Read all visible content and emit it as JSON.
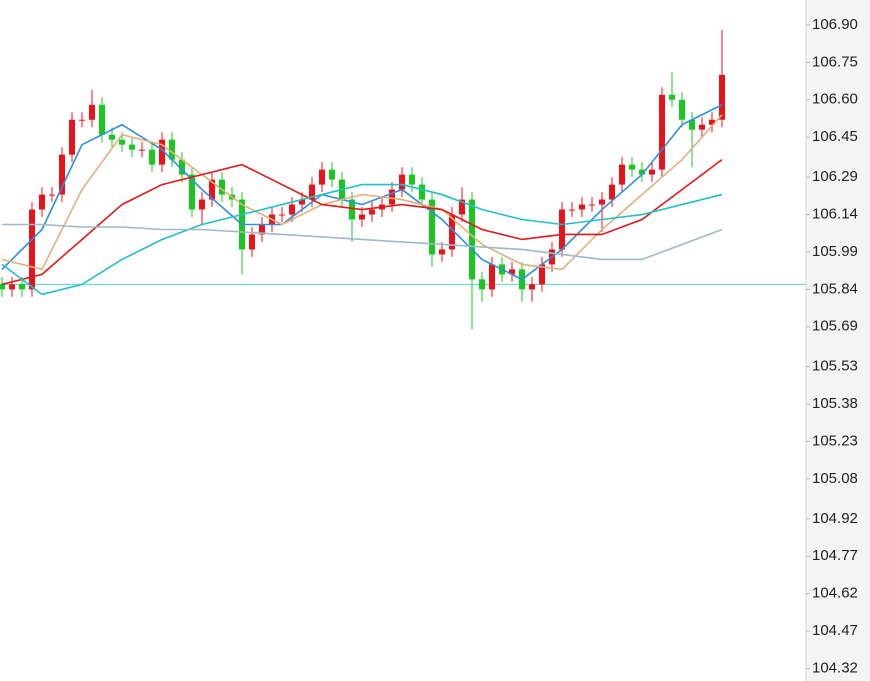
{
  "chart_data": {
    "type": "candlestick",
    "open": [
      105.86,
      105.84,
      105.86,
      105.84,
      106.16,
      106.22,
      106.22,
      106.38,
      106.52,
      106.52,
      106.58,
      106.46,
      106.44,
      106.42,
      106.4,
      106.4,
      106.34,
      106.44,
      106.36,
      106.3,
      106.16,
      106.2,
      106.28,
      106.22,
      106.2,
      106.0,
      106.06,
      106.1,
      106.14,
      106.14,
      106.18,
      106.2,
      106.26,
      106.32,
      106.28,
      106.2,
      106.12,
      106.14,
      106.16,
      106.18,
      106.24,
      106.3,
      106.26,
      106.2,
      105.98,
      106.0,
      106.14,
      106.2,
      105.88,
      105.84,
      105.94,
      105.9,
      105.92,
      105.84,
      105.86,
      105.94,
      106.0,
      106.16,
      106.16,
      106.18,
      106.18,
      106.2,
      106.26,
      106.34,
      106.32,
      106.3,
      106.32,
      106.62,
      106.6,
      106.52,
      106.48,
      106.5,
      106.52
    ],
    "high": [
      105.89,
      105.89,
      105.89,
      106.19,
      106.25,
      106.25,
      106.41,
      106.55,
      106.55,
      106.64,
      106.61,
      106.49,
      106.47,
      106.45,
      106.43,
      106.43,
      106.47,
      106.47,
      106.39,
      106.33,
      106.23,
      106.31,
      106.31,
      106.25,
      106.23,
      106.09,
      106.13,
      106.17,
      106.17,
      106.21,
      106.23,
      106.29,
      106.35,
      106.35,
      106.31,
      106.23,
      106.17,
      106.19,
      106.21,
      106.27,
      106.33,
      106.33,
      106.29,
      106.23,
      106.03,
      106.17,
      106.25,
      106.23,
      105.91,
      105.97,
      105.97,
      105.95,
      105.95,
      105.89,
      105.97,
      106.03,
      106.19,
      106.19,
      106.21,
      106.21,
      106.23,
      106.29,
      106.37,
      106.37,
      106.35,
      106.35,
      106.65,
      106.71,
      106.63,
      106.55,
      106.53,
      106.55,
      106.88
    ],
    "low": [
      105.81,
      105.81,
      105.81,
      105.81,
      106.13,
      106.19,
      106.19,
      106.35,
      106.49,
      106.49,
      106.43,
      106.41,
      106.39,
      106.37,
      106.37,
      106.31,
      106.31,
      106.33,
      106.27,
      106.13,
      106.1,
      106.17,
      106.19,
      106.17,
      105.9,
      105.97,
      106.03,
      106.07,
      106.11,
      106.11,
      106.15,
      106.17,
      106.23,
      106.25,
      106.17,
      106.03,
      106.09,
      106.11,
      106.13,
      106.15,
      106.21,
      106.23,
      106.17,
      105.93,
      105.95,
      105.97,
      106.11,
      105.68,
      105.79,
      105.81,
      105.87,
      105.87,
      105.79,
      105.79,
      105.83,
      105.91,
      105.97,
      106.13,
      106.13,
      106.15,
      106.07,
      106.17,
      106.23,
      106.29,
      106.27,
      106.27,
      106.29,
      106.57,
      106.49,
      106.33,
      106.45,
      106.47,
      106.49
    ],
    "close": [
      105.84,
      105.86,
      105.84,
      106.16,
      106.22,
      106.22,
      106.38,
      106.52,
      106.52,
      106.58,
      106.46,
      106.44,
      106.42,
      106.4,
      106.4,
      106.34,
      106.44,
      106.36,
      106.3,
      106.16,
      106.2,
      106.28,
      106.22,
      106.2,
      106.0,
      106.06,
      106.1,
      106.14,
      106.14,
      106.18,
      106.2,
      106.26,
      106.32,
      106.28,
      106.2,
      106.12,
      106.14,
      106.16,
      106.18,
      106.24,
      106.3,
      106.26,
      106.2,
      105.98,
      106.0,
      106.14,
      106.2,
      105.88,
      105.84,
      105.94,
      105.9,
      105.92,
      105.84,
      105.86,
      105.94,
      106.0,
      106.16,
      106.16,
      106.18,
      106.18,
      106.2,
      106.26,
      106.34,
      106.32,
      106.3,
      106.32,
      106.62,
      106.6,
      106.52,
      106.48,
      106.5,
      106.52,
      106.7
    ],
    "up_color": "#e8141c",
    "down_color": "#19c81e",
    "lines": [
      {
        "color": "#2e8fe0",
        "x": [
          0,
          4,
          8,
          12,
          16,
          20,
          24,
          28,
          32,
          36,
          40,
          44,
          48,
          52,
          56,
          60,
          64,
          68,
          72
        ],
        "values": [
          105.92,
          106.08,
          106.42,
          106.5,
          106.4,
          106.24,
          106.1,
          106.1,
          106.22,
          106.18,
          106.24,
          106.12,
          105.96,
          105.88,
          106.0,
          106.16,
          106.3,
          106.5,
          106.58
        ]
      },
      {
        "color": "#e0b080",
        "x": [
          0,
          4,
          8,
          12,
          16,
          20,
          24,
          28,
          32,
          36,
          40,
          44,
          48,
          52,
          56,
          60,
          64,
          68,
          72
        ],
        "values": [
          105.96,
          105.92,
          106.24,
          106.46,
          106.42,
          106.3,
          106.18,
          106.1,
          106.18,
          106.22,
          106.2,
          106.16,
          106.02,
          105.94,
          105.92,
          106.08,
          106.22,
          106.36,
          106.54
        ]
      },
      {
        "color": "#e01818",
        "x": [
          0,
          4,
          8,
          12,
          16,
          20,
          24,
          28,
          32,
          36,
          40,
          44,
          48,
          52,
          56,
          60,
          64,
          68,
          72
        ],
        "values": [
          105.86,
          105.9,
          106.04,
          106.18,
          106.26,
          106.3,
          106.34,
          106.26,
          106.18,
          106.16,
          106.18,
          106.16,
          106.08,
          106.04,
          106.06,
          106.06,
          106.12,
          106.24,
          106.36
        ]
      },
      {
        "color": "#22c0c8",
        "x": [
          0,
          4,
          8,
          12,
          16,
          20,
          24,
          28,
          32,
          36,
          40,
          44,
          48,
          52,
          56,
          60,
          64,
          68,
          72
        ],
        "values": [
          105.94,
          105.82,
          105.86,
          105.96,
          106.04,
          106.1,
          106.14,
          106.18,
          106.22,
          106.26,
          106.26,
          106.22,
          106.16,
          106.12,
          106.1,
          106.12,
          106.14,
          106.18,
          106.22
        ]
      },
      {
        "color": "#a0b8cc",
        "x": [
          0,
          4,
          8,
          12,
          16,
          20,
          24,
          28,
          32,
          36,
          40,
          44,
          48,
          52,
          56,
          60,
          64,
          68,
          72
        ],
        "values": [
          106.1,
          106.1,
          106.09,
          106.09,
          106.08,
          106.08,
          106.07,
          106.06,
          106.05,
          106.04,
          106.03,
          106.02,
          106.01,
          106.0,
          105.98,
          105.96,
          105.96,
          106.02,
          106.08
        ]
      }
    ],
    "hline": 105.86,
    "hline_color": "#5cd0c0",
    "ylim": [
      104.27,
      107.0
    ],
    "yticks": [
      {
        "value": 106.9,
        "label": "106.90"
      },
      {
        "value": 106.75,
        "label": "106.75"
      },
      {
        "value": 106.6,
        "label": "106.60"
      },
      {
        "value": 106.45,
        "label": "106.45"
      },
      {
        "value": 106.29,
        "label": "106.29"
      },
      {
        "value": 106.14,
        "label": "106.14"
      },
      {
        "value": 105.99,
        "label": "105.99"
      },
      {
        "value": 105.84,
        "label": "105.84"
      },
      {
        "value": 105.69,
        "label": "105.69"
      },
      {
        "value": 105.53,
        "label": "105.53"
      },
      {
        "value": 105.38,
        "label": "105.38"
      },
      {
        "value": 105.23,
        "label": "105.23"
      },
      {
        "value": 105.08,
        "label": "105.08"
      },
      {
        "value": 104.92,
        "label": "104.92"
      },
      {
        "value": 104.77,
        "label": "104.77"
      },
      {
        "value": 104.62,
        "label": "104.62"
      },
      {
        "value": 104.47,
        "label": "104.47"
      },
      {
        "value": 104.32,
        "label": "104.32"
      }
    ]
  }
}
